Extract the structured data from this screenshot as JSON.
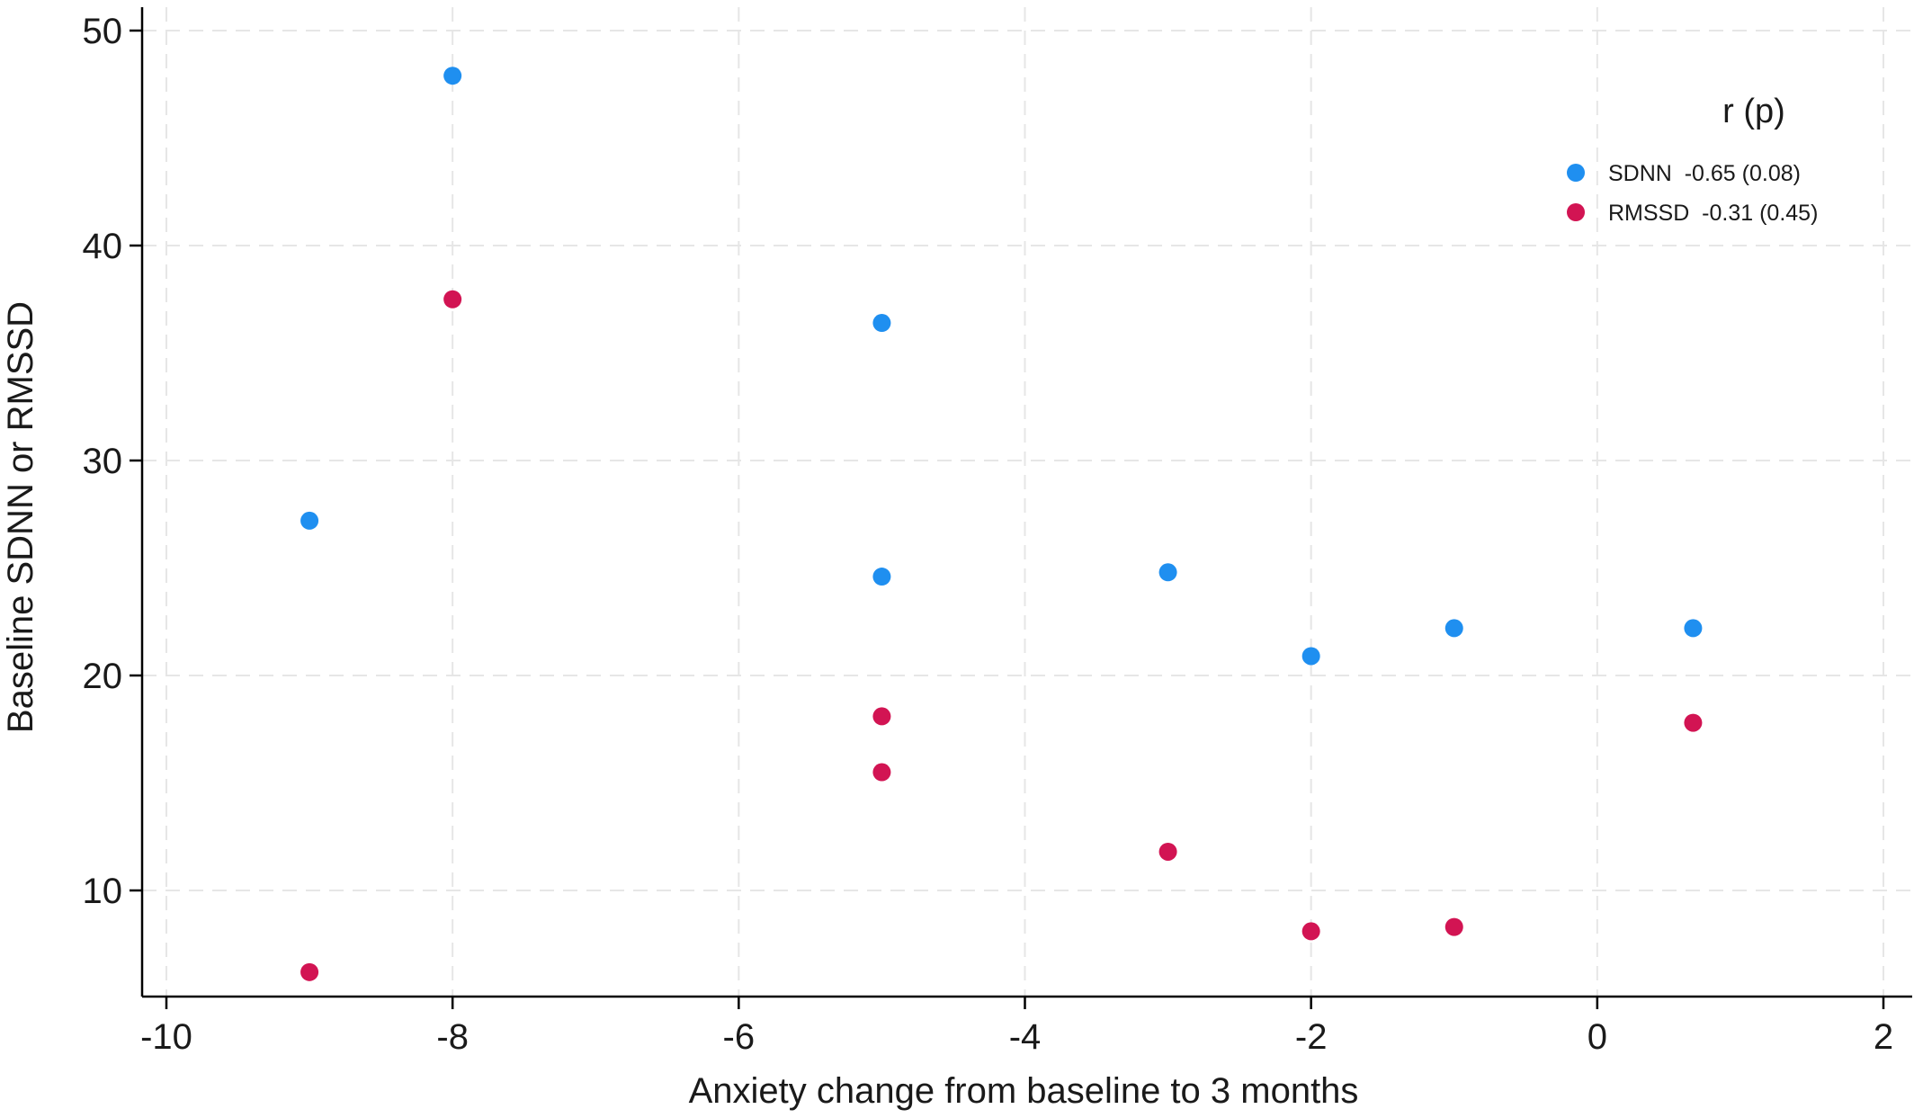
{
  "chart_data": {
    "type": "scatter",
    "xlabel": "Anxiety change from baseline to 3 months",
    "ylabel": "Baseline SDNN or RMSSD",
    "xlim": [
      -10.2,
      2.2
    ],
    "ylim": [
      5.0,
      51.0
    ],
    "x_ticks": [
      -10,
      -8,
      -6,
      -4,
      -2,
      0,
      2
    ],
    "y_ticks": [
      10,
      20,
      30,
      40,
      50
    ],
    "grid": true,
    "legend": {
      "title": "r (p)",
      "placement": "top-right"
    },
    "series": [
      {
        "name": "SDNN  -0.65 (0.08)",
        "color": "#1f8ff0",
        "points": [
          {
            "x": -9,
            "y": 27.2
          },
          {
            "x": -8,
            "y": 47.9
          },
          {
            "x": -5,
            "y": 36.4
          },
          {
            "x": -5,
            "y": 24.6
          },
          {
            "x": -3,
            "y": 24.8
          },
          {
            "x": -2,
            "y": 20.9
          },
          {
            "x": -1,
            "y": 22.2
          },
          {
            "x": 0.67,
            "y": 22.2
          }
        ]
      },
      {
        "name": "RMSSD  -0.31 (0.45)",
        "color": "#d21453",
        "points": [
          {
            "x": -9,
            "y": 6.2
          },
          {
            "x": -8,
            "y": 37.5
          },
          {
            "x": -5,
            "y": 18.1
          },
          {
            "x": -5,
            "y": 15.5
          },
          {
            "x": -3,
            "y": 11.8
          },
          {
            "x": -2,
            "y": 8.1
          },
          {
            "x": -1,
            "y": 8.3
          },
          {
            "x": 0.67,
            "y": 17.8
          }
        ]
      }
    ]
  }
}
